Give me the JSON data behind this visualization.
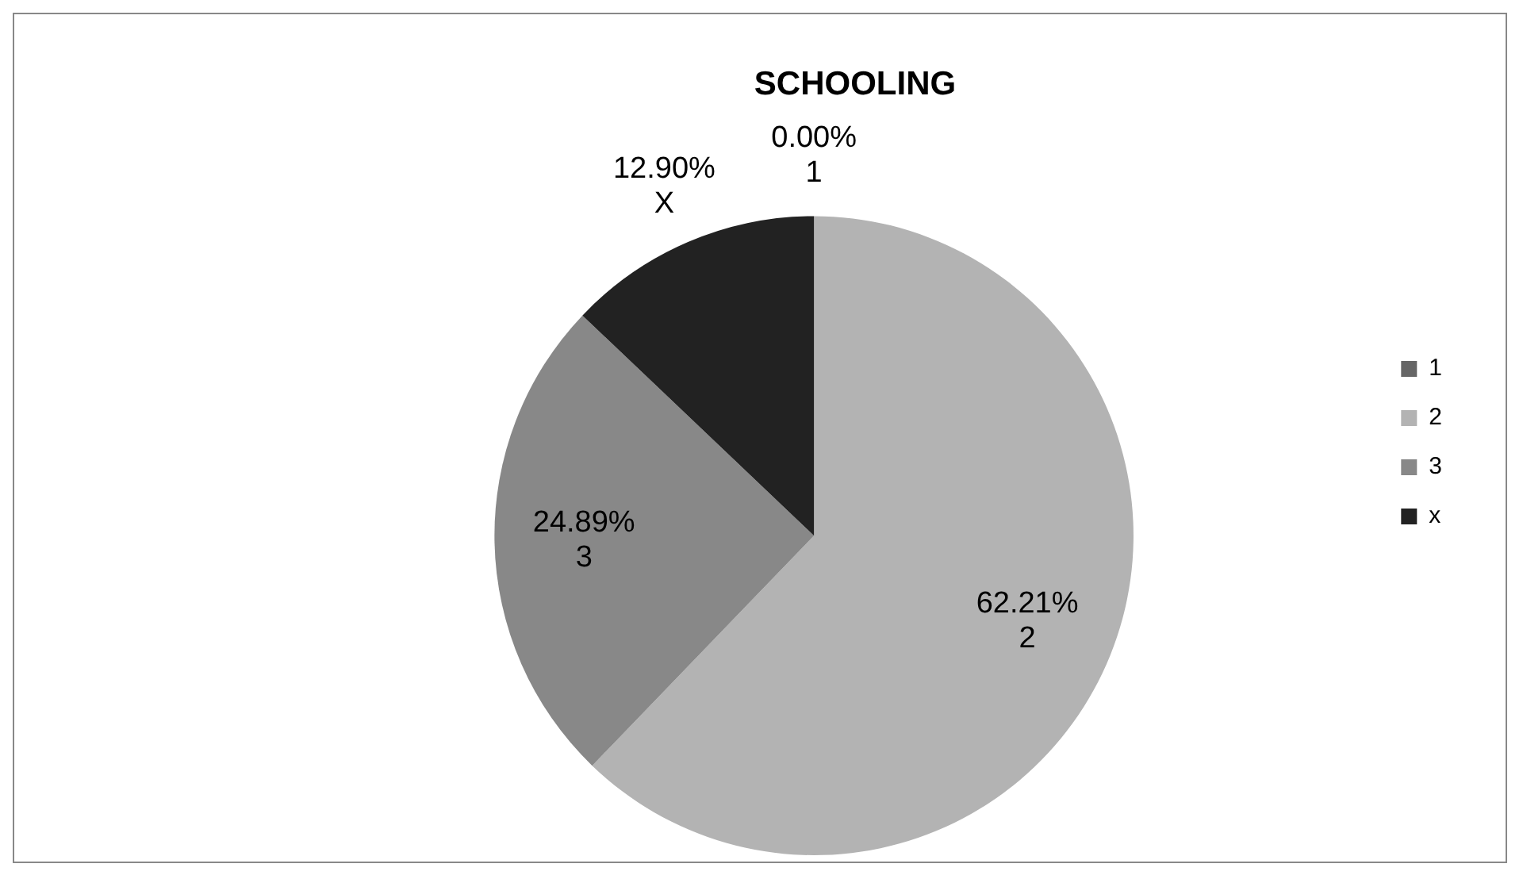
{
  "chart_data": {
    "type": "pie",
    "title": "SCHOOLING",
    "categories": [
      "1",
      "2",
      "3",
      "x"
    ],
    "values": [
      0.0,
      62.21,
      24.89,
      12.9
    ],
    "colors": [
      "#666666",
      "#b3b3b3",
      "#888888",
      "#222222"
    ],
    "value_labels": [
      "0.00%\n1",
      "62.21%\n2",
      "24.89%\n3",
      "12.90%\nX"
    ],
    "legend": "right"
  }
}
